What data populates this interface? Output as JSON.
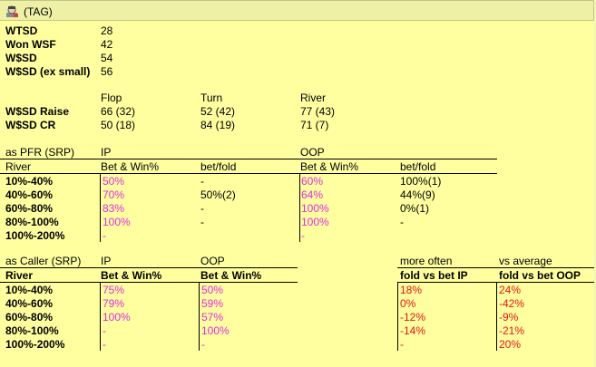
{
  "header": {
    "title": "(TAG)",
    "icon": "poker-player-icon"
  },
  "stats": [
    {
      "label": "WTSD",
      "value": "28"
    },
    {
      "label": "Won WSF",
      "value": "42"
    },
    {
      "label": "W$SD",
      "value": "54"
    },
    {
      "label": "W$SD (ex small)",
      "value": "56"
    }
  ],
  "streets": {
    "headers": [
      "Flop",
      "Turn",
      "River"
    ],
    "rows": [
      {
        "label": "W$SD Raise",
        "values": [
          "66 (32)",
          "52 (42)",
          "77 (43)"
        ]
      },
      {
        "label": "W$SD CR",
        "values": [
          "50 (18)",
          "84 (19)",
          "71 (7)"
        ]
      }
    ]
  },
  "pfr": {
    "title": "as PFR (SRP)",
    "group_ip": "IP",
    "group_oop": "OOP",
    "col_river": "River",
    "col_bet_win_ip": "Bet & Win%",
    "col_betfold_ip": "bet/fold",
    "col_bet_win_oop": "Bet & Win%",
    "col_betfold_oop": "bet/fold",
    "rows": [
      {
        "range": "10%-40%",
        "ip_bw": "50%",
        "ip_bf": "-",
        "oop_bw": "60%",
        "oop_bf": "100%(1)"
      },
      {
        "range": "40%-60%",
        "ip_bw": "70%",
        "ip_bf": "50%(2)",
        "oop_bw": "64%",
        "oop_bf": "44%(9)"
      },
      {
        "range": "60%-80%",
        "ip_bw": "83%",
        "ip_bf": "-",
        "oop_bw": "100%",
        "oop_bf": "0%(1)"
      },
      {
        "range": "80%-100%",
        "ip_bw": "100%",
        "ip_bf": "-",
        "oop_bw": "100%",
        "oop_bf": "-"
      },
      {
        "range": "100%-200%",
        "ip_bw": "-",
        "ip_bf": "",
        "oop_bw": "-",
        "oop_bf": ""
      }
    ]
  },
  "caller": {
    "title": "as Caller (SRP)",
    "group_ip": "IP",
    "group_oop": "OOP",
    "group_more": "more often",
    "group_vs": "vs average",
    "col_river": "River",
    "col_bw_ip": "Bet & Win%",
    "col_bw_oop": "Bet & Win%",
    "col_fold_ip": "fold vs bet IP",
    "col_fold_oop": "fold vs bet OOP",
    "rows": [
      {
        "range": "10%-40%",
        "ip": "75%",
        "oop": "50%",
        "fold_ip": "18%",
        "fold_oop": "24%"
      },
      {
        "range": "40%-60%",
        "ip": "79%",
        "oop": "59%",
        "fold_ip": "0%",
        "fold_oop": "-42%"
      },
      {
        "range": "60%-80%",
        "ip": "100%",
        "oop": "57%",
        "fold_ip": "-12%",
        "fold_oop": "-9%"
      },
      {
        "range": "80%-100%",
        "ip": "-",
        "oop": "100%",
        "fold_ip": "-14%",
        "fold_oop": "-21%"
      },
      {
        "range": "100%-200%",
        "ip": "-",
        "oop": "-",
        "fold_ip": "-",
        "fold_oop": "20%"
      }
    ]
  },
  "colors": {
    "background": "#ffffa0",
    "pink": "#e22be2",
    "red": "#e81414"
  }
}
